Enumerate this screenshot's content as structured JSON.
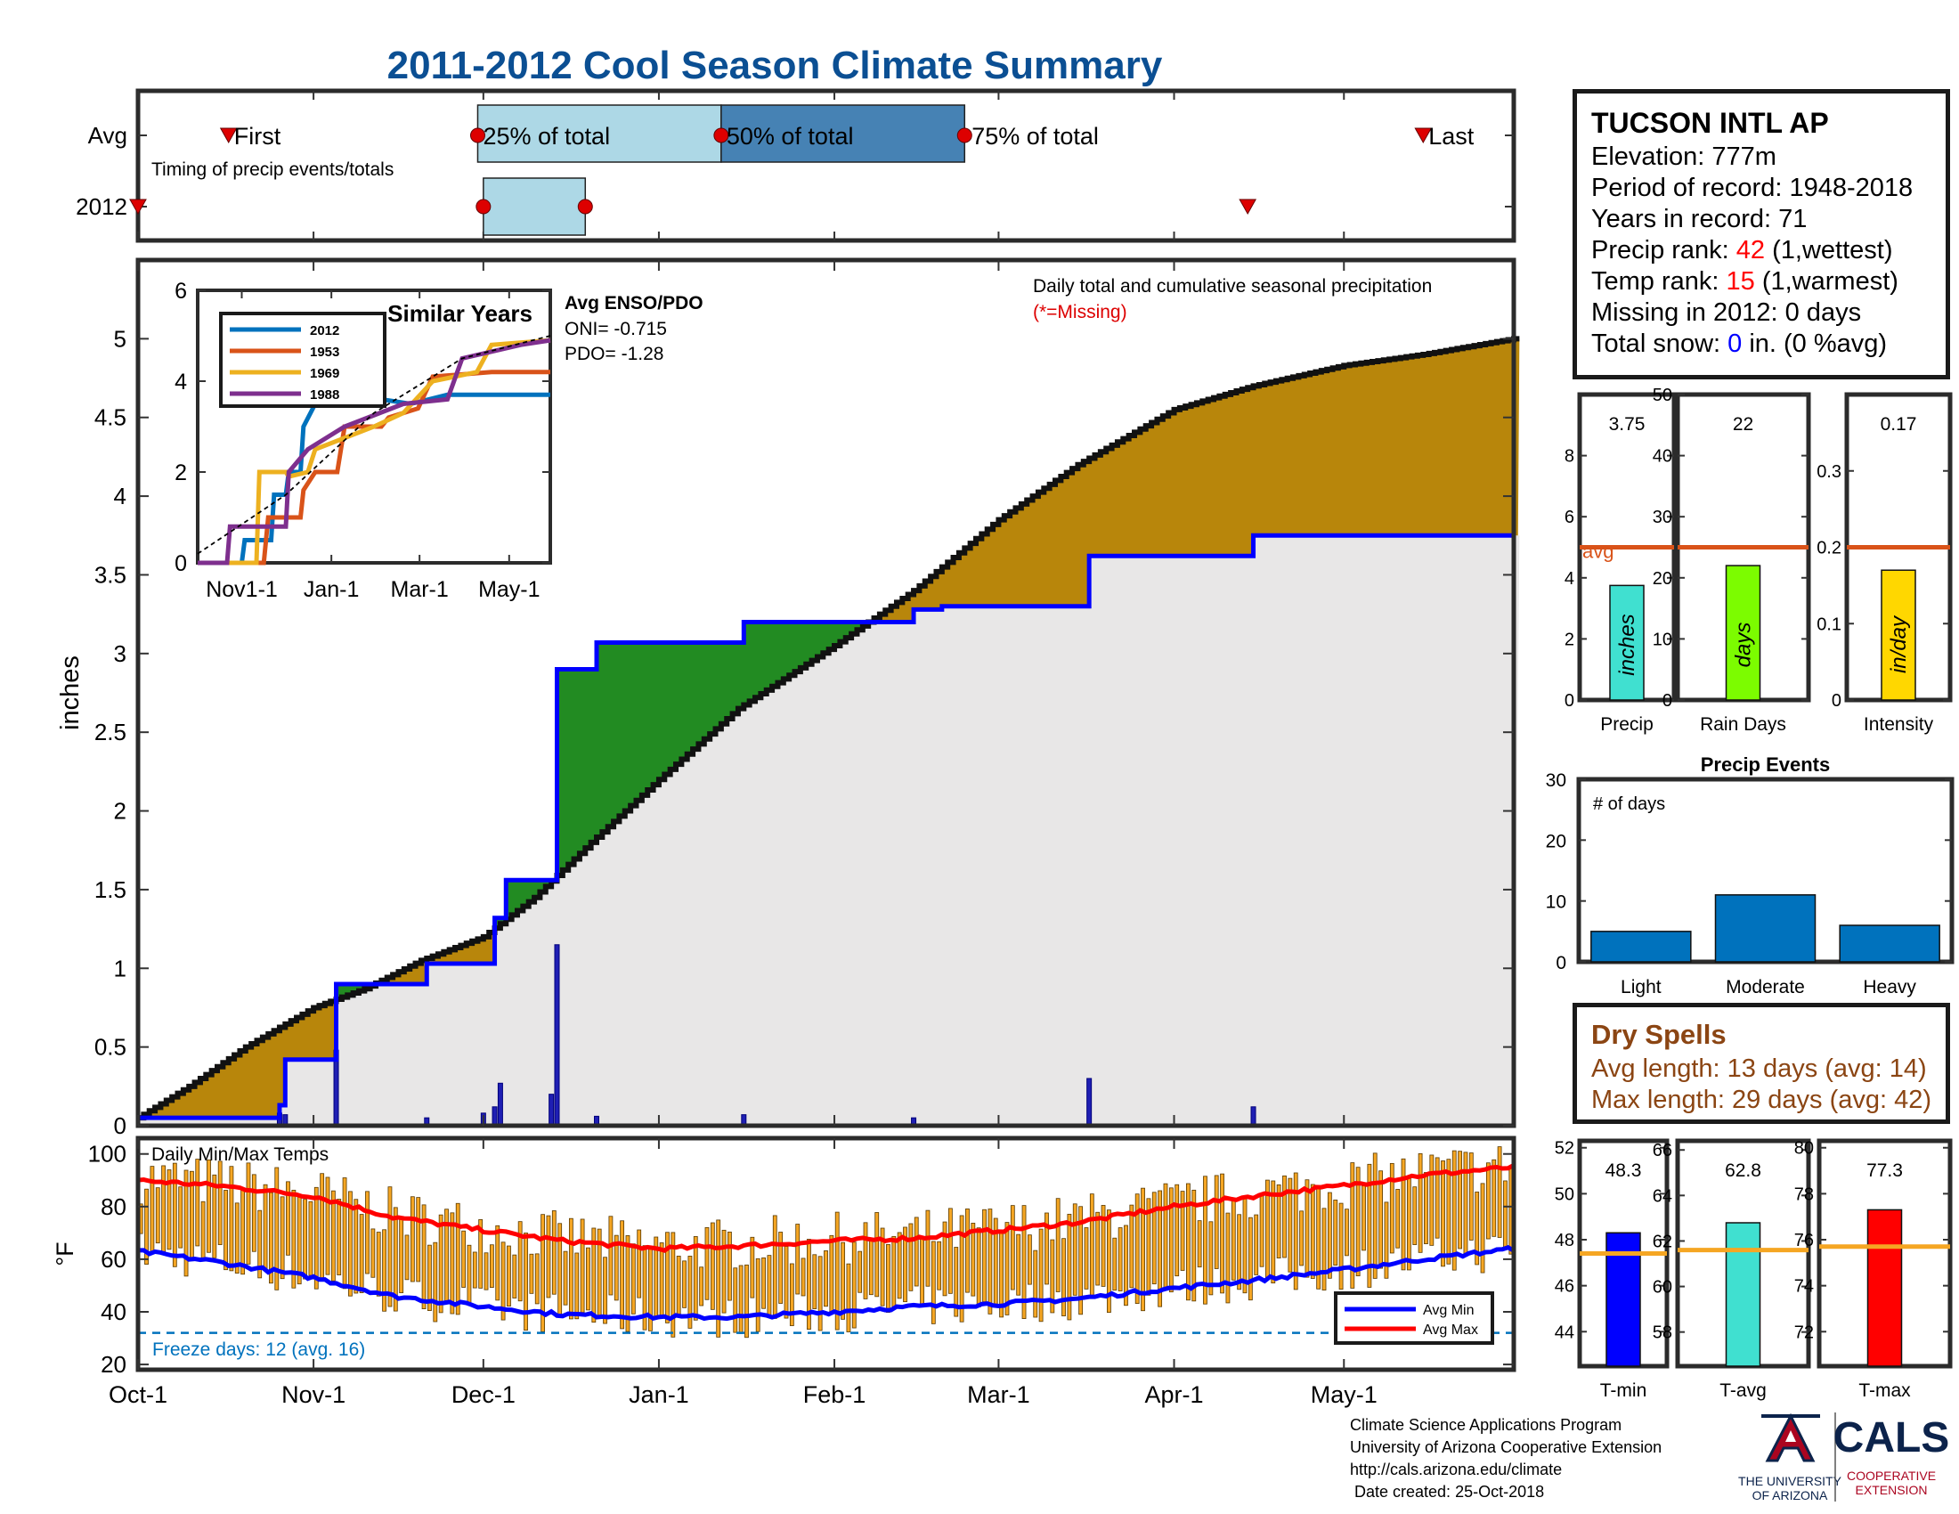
{
  "title": "2011-2012 Cool Season Climate Summary",
  "colors": {
    "title": "#0b4f93",
    "avg_cum": "#b8860b",
    "wetter": "#228b22",
    "grey_area": "#e8e7e7",
    "cum_line": "#111111",
    "blue": "#0000ff",
    "avg_line": "#d95319",
    "marker": "#dd0000",
    "light_box": "#add8e6",
    "dark_box": "#4682b4",
    "bar_blue": "#0072bd",
    "temp_bar": "#f5a623",
    "max_line": "#ff0000",
    "min_line": "#0000ff",
    "freeze": "#0072bd",
    "inst_text": "#8b4513",
    "ua_red": "#ab0520",
    "ua_navy": "#0c234b"
  },
  "timing": {
    "row_labels": [
      "Avg",
      "2012"
    ],
    "first_label": "First",
    "last_label": "Last",
    "subtitle": "Timing of precip events/totals",
    "pct_labels": [
      "25% of total",
      "50% of total",
      "75% of total"
    ],
    "avg": {
      "first": "Oct-17",
      "p25": "Nov-30",
      "p50": "Jan-12",
      "p75": "Feb-24",
      "last": "May-15"
    },
    "y2012": {
      "first": "Oct-01",
      "p25": "Dec-01",
      "p75": "Dec-19",
      "last": "Apr-14"
    }
  },
  "station": {
    "name": "TUCSON INTL AP",
    "elevation_label": "Elevation:",
    "elevation": "777m",
    "period_label": "Period of record:",
    "period": "1948-2018",
    "years_label": "Years in record:",
    "years": "71",
    "precip_rank_label": "Precip rank:",
    "precip_rank": "42",
    "precip_rank_note": "(1,wettest)",
    "temp_rank_label": "Temp rank:",
    "temp_rank": "15",
    "temp_rank_note": "(1,warmest)",
    "missing_label": "Missing in 2012:",
    "missing": "0 days",
    "snow_label": "Total snow:",
    "snow_value": "0",
    "snow_note": "in. (0 %avg)"
  },
  "dry_spells": {
    "title": "Dry Spells",
    "avg_line": "Avg length: 13 days (avg: 14)",
    "max_line": "Max length: 29 days (avg: 42)"
  },
  "footer": {
    "lines": [
      "Climate Science Applications Program",
      "University of Arizona Cooperative Extension",
      "http://cals.arizona.edu/climate",
      " Date created: 25-Oct-2018"
    ],
    "ua_logo": [
      "THE UNIVERSITY",
      "OF ARIZONA"
    ],
    "cals_logo": [
      "CALS",
      "COOPERATIVE",
      "EXTENSION"
    ]
  },
  "chart_data": [
    {
      "id": "precip_main",
      "type": "area",
      "title": "Daily total and cumulative seasonal precipitation",
      "note": "(*=Missing)",
      "ylabel": "inches",
      "ylim": [
        0,
        5.5
      ],
      "yticks": [
        0,
        0.5,
        1,
        1.5,
        2,
        2.5,
        3,
        3.5,
        4,
        4.5,
        5
      ],
      "x_start": "2011-10-01",
      "x_end": "2012-05-31",
      "xticks": [
        "Oct-1",
        "Nov-1",
        "Dec-1",
        "Jan-1",
        "Feb-1",
        "Mar-1",
        "Apr-1",
        "May-1"
      ],
      "series": [
        {
          "name": "average cumulative",
          "points": [
            [
              "2011-10-01",
              0.05
            ],
            [
              "2011-10-10",
              0.25
            ],
            [
              "2011-10-20",
              0.5
            ],
            [
              "2011-11-01",
              0.75
            ],
            [
              "2011-11-10",
              0.87
            ],
            [
              "2011-11-20",
              1.05
            ],
            [
              "2011-12-01",
              1.2
            ],
            [
              "2011-12-10",
              1.45
            ],
            [
              "2011-12-20",
              1.8
            ],
            [
              "2012-01-01",
              2.2
            ],
            [
              "2012-01-15",
              2.65
            ],
            [
              "2012-02-01",
              3.05
            ],
            [
              "2012-02-15",
              3.4
            ],
            [
              "2012-03-01",
              3.85
            ],
            [
              "2012-03-15",
              4.2
            ],
            [
              "2012-04-01",
              4.55
            ],
            [
              "2012-04-15",
              4.7
            ],
            [
              "2012-05-01",
              4.83
            ],
            [
              "2012-05-15",
              4.9
            ],
            [
              "2012-05-31",
              5.0
            ]
          ]
        },
        {
          "name": "2012 cumulative",
          "points": [
            [
              "2011-10-01",
              0.05
            ],
            [
              "2011-10-25",
              0.05
            ],
            [
              "2011-10-26",
              0.13
            ],
            [
              "2011-10-27",
              0.42
            ],
            [
              "2011-11-04",
              0.42
            ],
            [
              "2011-11-05",
              0.9
            ],
            [
              "2011-11-20",
              0.9
            ],
            [
              "2011-11-21",
              1.03
            ],
            [
              "2011-12-02",
              1.03
            ],
            [
              "2011-12-03",
              1.32
            ],
            [
              "2011-12-05",
              1.56
            ],
            [
              "2011-12-13",
              1.56
            ],
            [
              "2011-12-14",
              1.8
            ],
            [
              "2011-12-14",
              2.9
            ],
            [
              "2011-12-20",
              2.9
            ],
            [
              "2011-12-21",
              3.07
            ],
            [
              "2012-01-15",
              3.07
            ],
            [
              "2012-01-16",
              3.2
            ],
            [
              "2012-02-15",
              3.28
            ],
            [
              "2012-02-20",
              3.3
            ],
            [
              "2012-03-16",
              3.3
            ],
            [
              "2012-03-17",
              3.62
            ],
            [
              "2012-04-14",
              3.62
            ],
            [
              "2012-04-15",
              3.75
            ],
            [
              "2012-05-31",
              3.75
            ]
          ]
        }
      ],
      "daily_bars": [
        [
          "2011-10-26",
          0.08
        ],
        [
          "2011-10-27",
          0.07
        ],
        [
          "2011-11-05",
          0.48
        ],
        [
          "2011-11-21",
          0.05
        ],
        [
          "2011-12-01",
          0.08
        ],
        [
          "2011-12-03",
          0.12
        ],
        [
          "2011-12-04",
          0.27
        ],
        [
          "2011-12-13",
          0.2
        ],
        [
          "2011-12-14",
          1.15
        ],
        [
          "2011-12-21",
          0.06
        ],
        [
          "2012-01-16",
          0.07
        ],
        [
          "2012-02-15",
          0.05
        ],
        [
          "2012-03-17",
          0.3
        ],
        [
          "2012-04-15",
          0.12
        ]
      ]
    },
    {
      "id": "similar_years",
      "type": "line",
      "title": "Similar Years",
      "ylim": [
        0,
        6
      ],
      "yticks": [
        0,
        2,
        4,
        6
      ],
      "xticks": [
        "Nov1-1",
        "Jan-1",
        "Mar-1",
        "May-1"
      ],
      "series": [
        {
          "name": "2012",
          "color": "#0072bd",
          "points": [
            [
              0,
              0
            ],
            [
              30,
              0
            ],
            [
              32,
              0.5
            ],
            [
              50,
              0.5
            ],
            [
              52,
              1.5
            ],
            [
              60,
              1.5
            ],
            [
              62,
              2
            ],
            [
              70,
              2
            ],
            [
              72,
              3
            ],
            [
              80,
              3.5
            ],
            [
              125,
              3.6
            ],
            [
              145,
              3.5
            ],
            [
              170,
              3.7
            ],
            [
              240,
              3.7
            ]
          ]
        },
        {
          "name": "1953",
          "color": "#d95319",
          "points": [
            [
              0,
              0
            ],
            [
              45,
              0
            ],
            [
              48,
              1
            ],
            [
              70,
              1
            ],
            [
              72,
              1.6
            ],
            [
              80,
              2
            ],
            [
              95,
              2
            ],
            [
              100,
              3
            ],
            [
              125,
              3
            ],
            [
              130,
              3.2
            ],
            [
              150,
              3.4
            ],
            [
              160,
              4.1
            ],
            [
              200,
              4.2
            ],
            [
              240,
              4.2
            ]
          ]
        },
        {
          "name": "1969",
          "color": "#edb120",
          "points": [
            [
              0,
              0
            ],
            [
              40,
              0
            ],
            [
              42,
              2
            ],
            [
              60,
              2
            ],
            [
              62,
              1.9
            ],
            [
              75,
              2
            ],
            [
              80,
              2.5
            ],
            [
              120,
              3
            ],
            [
              140,
              3.3
            ],
            [
              160,
              4
            ],
            [
              190,
              4.2
            ],
            [
              200,
              4.8
            ],
            [
              240,
              4.9
            ]
          ]
        },
        {
          "name": "1988",
          "color": "#7e2f8e",
          "points": [
            [
              0,
              0
            ],
            [
              20,
              0
            ],
            [
              22,
              0.8
            ],
            [
              60,
              0.8
            ],
            [
              62,
              2
            ],
            [
              75,
              2.5
            ],
            [
              100,
              3
            ],
            [
              140,
              3.5
            ],
            [
              170,
              3.6
            ],
            [
              180,
              4.5
            ],
            [
              220,
              4.8
            ],
            [
              240,
              4.9
            ]
          ]
        },
        {
          "name": "average",
          "color": "#000000",
          "points": [
            [
              0,
              0.2
            ],
            [
              60,
              1.5
            ],
            [
              120,
              3.3
            ],
            [
              180,
              4.5
            ],
            [
              240,
              5.0
            ]
          ]
        }
      ]
    },
    {
      "id": "enso",
      "type": "table",
      "title": "Avg ENSO/PDO",
      "rows": [
        [
          "ONI=",
          "-0.715"
        ],
        [
          "PDO=",
          "-1.28"
        ]
      ]
    },
    {
      "id": "precip_total",
      "type": "bar",
      "categories": [
        "Precip"
      ],
      "values": [
        3.75
      ],
      "value_label": "3.75",
      "bar_text": "inches",
      "avg": 5.0,
      "avg_label": "avg",
      "ylim": [
        0,
        10
      ],
      "yticks": [
        0,
        2,
        4,
        6,
        8
      ]
    },
    {
      "id": "rain_days",
      "type": "bar",
      "categories": [
        "Rain Days"
      ],
      "values": [
        22
      ],
      "value_label": "22",
      "bar_text": "days",
      "avg": 25,
      "ylim": [
        0,
        50
      ],
      "yticks": [
        0,
        10,
        20,
        30,
        40,
        50
      ]
    },
    {
      "id": "intensity",
      "type": "bar",
      "categories": [
        "Intensity"
      ],
      "values": [
        0.17
      ],
      "value_label": "0.17",
      "bar_text": "in/day",
      "avg": 0.2,
      "ylim": [
        0,
        0.4
      ],
      "yticks": [
        0,
        0.1,
        0.2,
        0.3
      ]
    },
    {
      "id": "precip_events",
      "type": "bar",
      "title": "Precip Events",
      "ylabel": "# of days",
      "categories": [
        "Light",
        "Moderate",
        "Heavy"
      ],
      "values": [
        5,
        11,
        6
      ],
      "ylim": [
        0,
        30
      ],
      "yticks": [
        0,
        10,
        20,
        30
      ]
    },
    {
      "id": "daily_temps",
      "type": "bar",
      "title": "Daily Min/Max Temps",
      "ylabel": "°F",
      "ylim": [
        18,
        106
      ],
      "yticks": [
        20,
        40,
        60,
        80,
        100
      ],
      "x_start": "2011-10-01",
      "x_end": "2012-05-31",
      "xticks": [
        "Oct-1",
        "Nov-1",
        "Dec-1",
        "Jan-1",
        "Feb-1",
        "Mar-1",
        "Apr-1",
        "May-1"
      ],
      "avg_max": [
        [
          "2011-10-01",
          90
        ],
        [
          "2011-10-15",
          88
        ],
        [
          "2011-11-01",
          84
        ],
        [
          "2011-11-15",
          76
        ],
        [
          "2011-12-01",
          71
        ],
        [
          "2011-12-15",
          67
        ],
        [
          "2012-01-01",
          64
        ],
        [
          "2012-01-15",
          65
        ],
        [
          "2012-02-01",
          67
        ],
        [
          "2012-02-15",
          68
        ],
        [
          "2012-03-01",
          71
        ],
        [
          "2012-03-15",
          74
        ],
        [
          "2012-04-01",
          80
        ],
        [
          "2012-04-15",
          84
        ],
        [
          "2012-05-01",
          88
        ],
        [
          "2012-05-15",
          92
        ],
        [
          "2012-05-31",
          95
        ]
      ],
      "avg_min": [
        [
          "2011-10-01",
          63
        ],
        [
          "2011-10-15",
          59
        ],
        [
          "2011-11-01",
          53
        ],
        [
          "2011-11-15",
          46
        ],
        [
          "2011-12-01",
          42
        ],
        [
          "2011-12-15",
          39
        ],
        [
          "2012-01-01",
          38
        ],
        [
          "2012-01-15",
          38
        ],
        [
          "2012-02-01",
          40
        ],
        [
          "2012-02-15",
          42
        ],
        [
          "2012-03-01",
          43
        ],
        [
          "2012-03-15",
          45
        ],
        [
          "2012-04-01",
          49
        ],
        [
          "2012-04-15",
          52
        ],
        [
          "2012-05-01",
          56
        ],
        [
          "2012-05-15",
          60
        ],
        [
          "2012-05-31",
          64
        ]
      ],
      "freeze_line": 32,
      "freeze_label": "Freeze days: 12 (avg. 16)",
      "legend": [
        "Avg Min",
        "Avg Max"
      ],
      "daily_spread": 20
    },
    {
      "id": "tmin",
      "type": "bar",
      "categories": [
        "T-min"
      ],
      "values": [
        48.3
      ],
      "value_label": "48.3",
      "avg": 47.4,
      "ylim": [
        42.5,
        52.3
      ],
      "yticks": [
        44,
        46,
        48,
        50,
        52
      ],
      "color": "#0000ff"
    },
    {
      "id": "tavg",
      "type": "bar",
      "categories": [
        "T-avg"
      ],
      "values": [
        62.8
      ],
      "value_label": "62.8",
      "avg": 61.6,
      "ylim": [
        56.5,
        66.4
      ],
      "yticks": [
        58,
        60,
        62,
        64,
        66
      ],
      "color": "#40e0d0"
    },
    {
      "id": "tmax",
      "type": "bar",
      "categories": [
        "T-max"
      ],
      "values": [
        77.3
      ],
      "value_label": "77.3",
      "avg": 75.7,
      "ylim": [
        70.5,
        80.3
      ],
      "yticks": [
        72,
        74,
        76,
        78,
        80
      ],
      "color": "#ff0000"
    }
  ]
}
